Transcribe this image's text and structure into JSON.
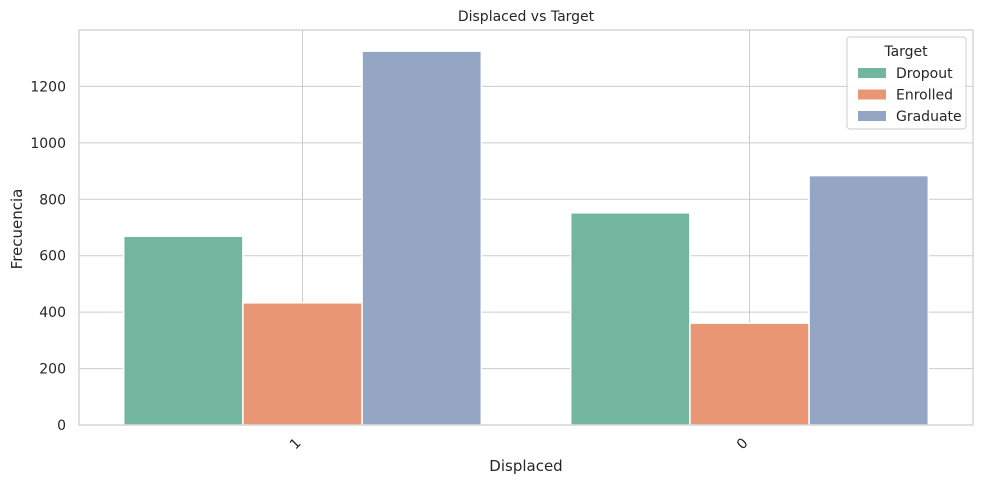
{
  "chart_data": {
    "type": "bar",
    "title": "Displaced vs Target",
    "xlabel": "Displaced",
    "ylabel": "Frecuencia",
    "categories": [
      "1",
      "0"
    ],
    "series": [
      {
        "name": "Dropout",
        "values": [
          669,
          752
        ],
        "color": "#73b6a0"
      },
      {
        "name": "Enrolled",
        "values": [
          433,
          361
        ],
        "color": "#e99675"
      },
      {
        "name": "Graduate",
        "values": [
          1325,
          884
        ],
        "color": "#95a5c4"
      }
    ],
    "ylim": [
      0,
      1400
    ],
    "yticks": [
      0,
      200,
      400,
      600,
      800,
      1000,
      1200
    ],
    "grid": true,
    "legend": {
      "title": "Target",
      "placement": "top-right"
    }
  }
}
